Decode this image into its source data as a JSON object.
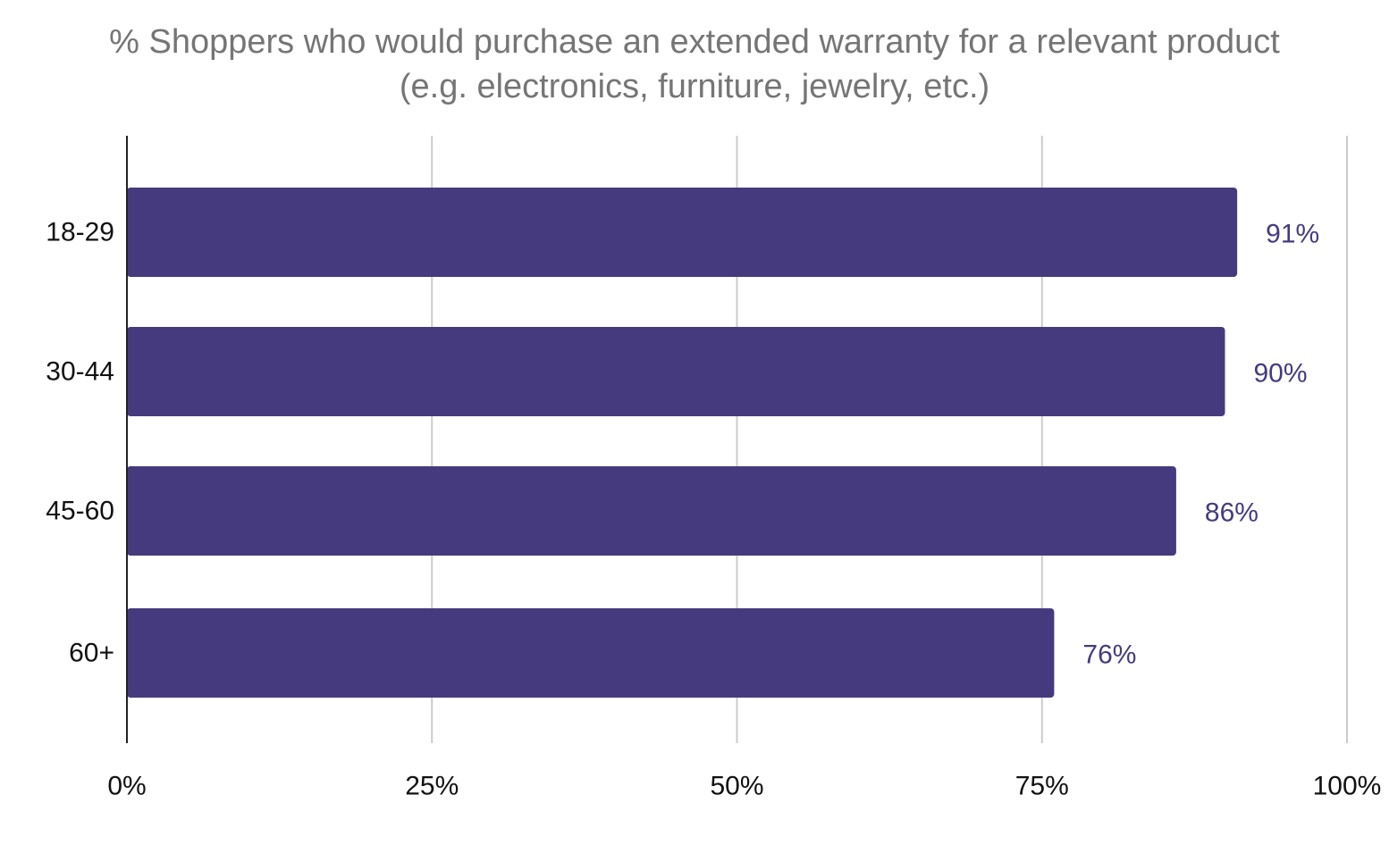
{
  "colors": {
    "bar": "#463a7e",
    "data_label": "#463a7e",
    "grid": "#cccccc",
    "axis": "#222222",
    "title": "#757575"
  },
  "chart_data": {
    "type": "bar",
    "orientation": "horizontal",
    "title_lines": [
      "% Shoppers who would purchase an extended warranty for a relevant product",
      "(e.g. electronics, furniture, jewelry, etc.)"
    ],
    "categories": [
      "18-29",
      "30-44",
      "45-60",
      "60+"
    ],
    "values": [
      91,
      90,
      86,
      76
    ],
    "data_labels": [
      "91%",
      "90%",
      "86%",
      "76%"
    ],
    "xlim": [
      0,
      100
    ],
    "x_ticks": [
      0,
      25,
      50,
      75,
      100
    ],
    "x_tick_labels": [
      "0%",
      "25%",
      "50%",
      "75%",
      "100%"
    ],
    "grid": true,
    "legend": "none"
  }
}
